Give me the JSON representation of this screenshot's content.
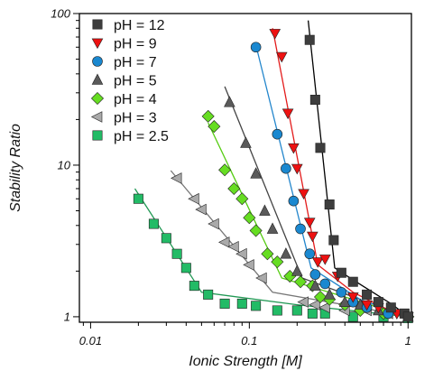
{
  "chart_data": {
    "type": "scatter",
    "title": "",
    "xlabel": "Ionic Strength [M]",
    "ylabel": "Stability Ratio",
    "xscale": "log",
    "yscale": "log",
    "xlim": [
      0.0085,
      1.05
    ],
    "ylim": [
      0.92,
      100
    ],
    "xticks": [
      {
        "value": 0.01,
        "label": "0.01"
      },
      {
        "value": 0.1,
        "label": "0.1"
      },
      {
        "value": 1,
        "label": "1"
      }
    ],
    "yticks": [
      {
        "value": 1,
        "label": "1"
      },
      {
        "value": 10,
        "label": "10"
      },
      {
        "value": 100,
        "label": "100"
      }
    ],
    "grid": false,
    "legend_position": "top-left",
    "series": [
      {
        "name": "pH = 12",
        "marker": "square",
        "color": "#3d3d3d",
        "line_color": "#000000",
        "points": [
          [
            0.24,
            67
          ],
          [
            0.26,
            27
          ],
          [
            0.28,
            13
          ],
          [
            0.32,
            5.5
          ],
          [
            0.34,
            3.2
          ],
          [
            0.38,
            1.95
          ],
          [
            0.45,
            1.7
          ],
          [
            0.55,
            1.4
          ],
          [
            0.65,
            1.25
          ],
          [
            0.78,
            1.15
          ],
          [
            0.95,
            1.05
          ],
          [
            1.0,
            1.0
          ]
        ],
        "fit": [
          [
            0.235,
            90
          ],
          [
            0.345,
            2.1
          ],
          [
            0.45,
            1.75
          ],
          [
            0.6,
            1.45
          ],
          [
            0.8,
            1.2
          ],
          [
            1.0,
            1.0
          ]
        ]
      },
      {
        "name": "pH = 9",
        "marker": "triangle-down",
        "color": "#ee1111",
        "line_color": "#e31b1b",
        "points": [
          [
            0.145,
            74
          ],
          [
            0.16,
            52
          ],
          [
            0.175,
            22
          ],
          [
            0.19,
            13
          ],
          [
            0.2,
            9.5
          ],
          [
            0.22,
            6.5
          ],
          [
            0.24,
            4.2
          ],
          [
            0.25,
            3.4
          ],
          [
            0.27,
            2.3
          ],
          [
            0.3,
            2.4
          ],
          [
            0.36,
            1.85
          ],
          [
            0.45,
            1.35
          ],
          [
            0.55,
            1.2
          ],
          [
            0.65,
            1.15
          ],
          [
            0.85,
            1.05
          ],
          [
            1.0,
            1.0
          ]
        ],
        "fit": [
          [
            0.14,
            80
          ],
          [
            0.27,
            2.2
          ],
          [
            0.45,
            1.45
          ],
          [
            0.7,
            1.15
          ],
          [
            1.0,
            1.0
          ]
        ]
      },
      {
        "name": "pH = 7",
        "marker": "circle",
        "color": "#1a88d0",
        "line_color": "#2386cc",
        "points": [
          [
            0.11,
            60
          ],
          [
            0.15,
            16
          ],
          [
            0.17,
            9.5
          ],
          [
            0.19,
            5.8
          ],
          [
            0.21,
            3.8
          ],
          [
            0.24,
            2.6
          ],
          [
            0.26,
            1.9
          ],
          [
            0.3,
            1.65
          ],
          [
            0.38,
            1.45
          ],
          [
            0.45,
            1.25
          ],
          [
            0.55,
            1.15
          ],
          [
            0.75,
            1.05
          ],
          [
            1.0,
            1.0
          ]
        ],
        "fit": [
          [
            0.11,
            62
          ],
          [
            0.245,
            2.1
          ],
          [
            0.5,
            1.3
          ],
          [
            1.0,
            1.0
          ]
        ]
      },
      {
        "name": "pH = 5",
        "marker": "triangle-up",
        "color": "#5a5a5a",
        "line_color": "#444444",
        "points": [
          [
            0.075,
            26
          ],
          [
            0.095,
            14
          ],
          [
            0.11,
            8.8
          ],
          [
            0.125,
            5.0
          ],
          [
            0.14,
            3.8
          ],
          [
            0.17,
            2.6
          ],
          [
            0.2,
            2.0
          ],
          [
            0.26,
            1.6
          ],
          [
            0.32,
            1.4
          ],
          [
            0.4,
            1.25
          ],
          [
            0.5,
            1.2
          ],
          [
            0.65,
            1.1
          ],
          [
            1.0,
            1.0
          ]
        ],
        "fit": [
          [
            0.07,
            33
          ],
          [
            0.215,
            1.8
          ],
          [
            0.5,
            1.3
          ],
          [
            1.0,
            1.0
          ]
        ]
      },
      {
        "name": "pH = 4",
        "marker": "diamond",
        "color": "#66dd22",
        "line_color": "#55cc11",
        "points": [
          [
            0.055,
            21
          ],
          [
            0.06,
            18
          ],
          [
            0.07,
            9.3
          ],
          [
            0.08,
            7.0
          ],
          [
            0.09,
            6.0
          ],
          [
            0.1,
            4.5
          ],
          [
            0.11,
            3.7
          ],
          [
            0.13,
            2.6
          ],
          [
            0.15,
            2.3
          ],
          [
            0.18,
            1.85
          ],
          [
            0.21,
            1.7
          ],
          [
            0.25,
            1.6
          ],
          [
            0.28,
            1.35
          ],
          [
            0.32,
            1.3
          ],
          [
            0.4,
            1.2
          ],
          [
            0.5,
            1.1
          ],
          [
            0.7,
            1.05
          ],
          [
            1.0,
            1.0
          ]
        ],
        "fit": [
          [
            0.055,
            19
          ],
          [
            0.16,
            1.8
          ],
          [
            0.4,
            1.35
          ],
          [
            1.0,
            1.0
          ]
        ]
      },
      {
        "name": "pH = 3",
        "marker": "triangle-left",
        "color": "#aaaaaa",
        "line_color": "#777777",
        "points": [
          [
            0.035,
            8.2
          ],
          [
            0.045,
            6.0
          ],
          [
            0.05,
            5.1
          ],
          [
            0.06,
            4.1
          ],
          [
            0.07,
            3.1
          ],
          [
            0.08,
            2.9
          ],
          [
            0.09,
            2.6
          ],
          [
            0.1,
            2.2
          ],
          [
            0.12,
            1.8
          ],
          [
            0.22,
            1.25
          ],
          [
            0.26,
            1.2
          ],
          [
            0.3,
            1.15
          ],
          [
            0.4,
            1.1
          ],
          [
            0.55,
            1.1
          ],
          [
            0.75,
            1.05
          ],
          [
            1.0,
            1.0
          ]
        ],
        "fit": [
          [
            0.032,
            9.2
          ],
          [
            0.14,
            1.45
          ],
          [
            0.5,
            1.15
          ],
          [
            1.0,
            1.0
          ]
        ]
      },
      {
        "name": "pH = 2.5",
        "marker": "square",
        "color": "#22bb66",
        "line_color": "#229955",
        "points": [
          [
            0.02,
            6.0
          ],
          [
            0.025,
            4.1
          ],
          [
            0.03,
            3.3
          ],
          [
            0.035,
            2.6
          ],
          [
            0.04,
            2.1
          ],
          [
            0.045,
            1.6
          ],
          [
            0.055,
            1.4
          ],
          [
            0.07,
            1.22
          ],
          [
            0.09,
            1.22
          ],
          [
            0.11,
            1.18
          ],
          [
            0.15,
            1.1
          ],
          [
            0.2,
            1.1
          ],
          [
            0.25,
            1.05
          ],
          [
            0.3,
            1.05
          ],
          [
            0.45,
            1.0
          ],
          [
            0.7,
            1.0
          ],
          [
            1.0,
            0.98
          ]
        ],
        "fit": [
          [
            0.019,
            7.0
          ],
          [
            0.05,
            1.45
          ],
          [
            0.2,
            1.2
          ],
          [
            1.0,
            1.0
          ]
        ]
      }
    ]
  }
}
